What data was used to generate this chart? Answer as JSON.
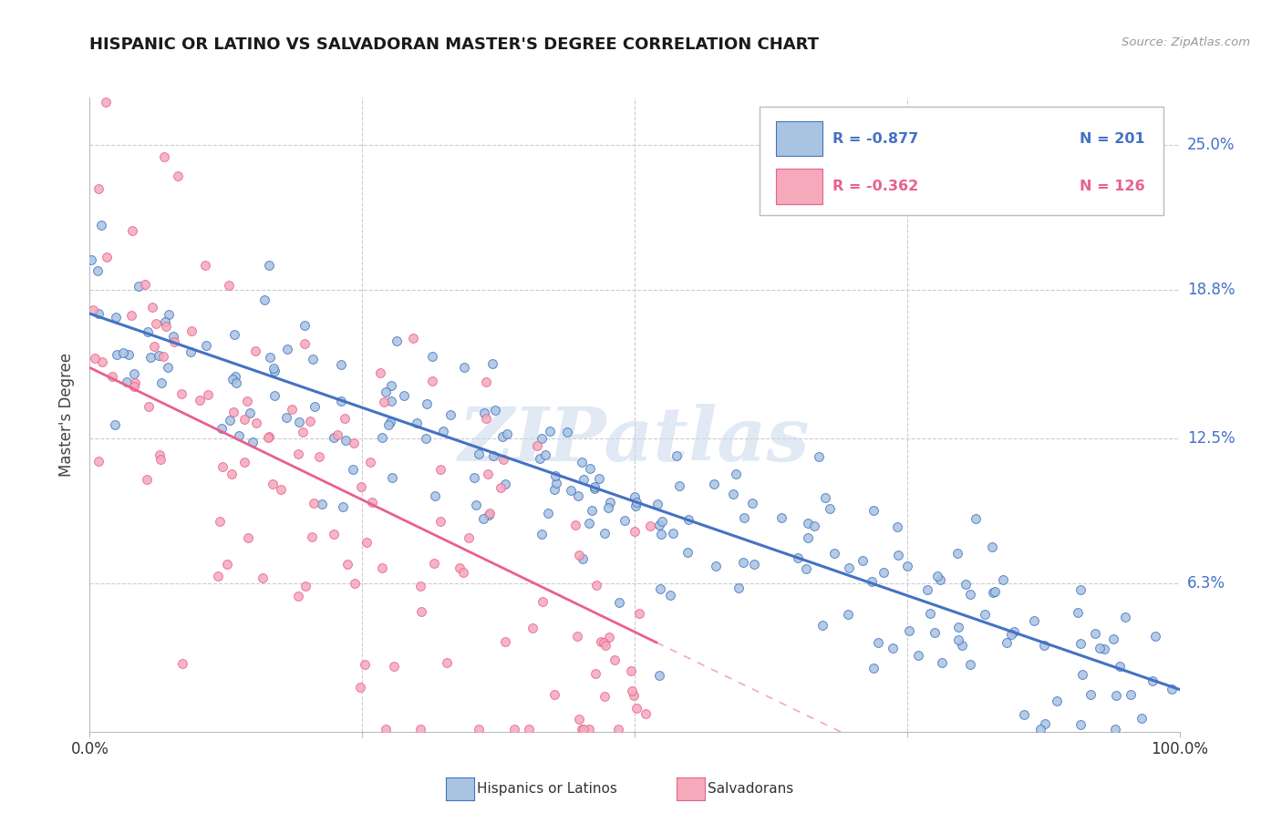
{
  "title": "HISPANIC OR LATINO VS SALVADORAN MASTER'S DEGREE CORRELATION CHART",
  "source": "Source: ZipAtlas.com",
  "ylabel": "Master's Degree",
  "right_yticks": [
    "25.0%",
    "18.8%",
    "12.5%",
    "6.3%"
  ],
  "right_ytick_vals": [
    0.25,
    0.188,
    0.125,
    0.063
  ],
  "blue_R": -0.877,
  "blue_N": 201,
  "pink_R": -0.362,
  "pink_N": 126,
  "blue_color": "#A8C4E0",
  "pink_color": "#F4AABA",
  "blue_line_color": "#4472C4",
  "pink_line_color": "#E96090",
  "watermark": "ZIPatlas",
  "legend_blue_label": "Hispanics or Latinos",
  "legend_pink_label": "Salvadorans",
  "xlim": [
    0.0,
    1.0
  ],
  "ylim": [
    0.0,
    0.27
  ],
  "blue_trend_x0": 0.0,
  "blue_trend_y0": 0.178,
  "blue_trend_x1": 1.0,
  "blue_trend_y1": 0.018,
  "pink_trend_x0": 0.0,
  "pink_trend_y0": 0.155,
  "pink_trend_x1": 0.52,
  "pink_trend_y1": 0.038
}
